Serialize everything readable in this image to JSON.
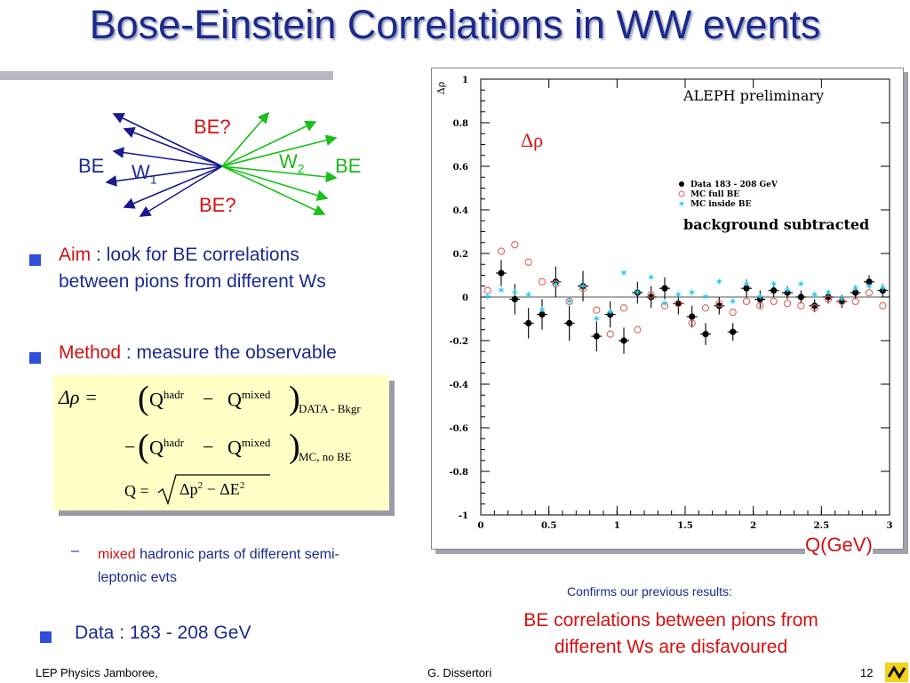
{
  "slide": {
    "title": "Bose-Einstein Correlations in WW events",
    "diagram": {
      "be_left": "BE",
      "be_right": "BE",
      "be_top": "BE?",
      "be_bottom": "BE?",
      "w1": "W",
      "w1_sub": "1",
      "w2": "W",
      "w2_sub": "2"
    },
    "bullets": {
      "aim_key": "Aim",
      "aim_text": " : look for BE correlations",
      "aim_text2": "between pions from different Ws",
      "method_key": "Method",
      "method_text": " : measure the observable",
      "sub_key": "mixed",
      "sub_text": " hadronic parts of different semi-",
      "sub_text2": "leptonic evts",
      "data_text": "Data : 183 - 208 GeV"
    },
    "formula": {
      "lhs": "Δρ =",
      "q": "Q",
      "hadr": "hadr",
      "mixed": "mixed",
      "minus": "−",
      "sub1": "DATA - Bkgr",
      "sub2": "MC, no BE",
      "qdef_lhs": "Q =",
      "qdef_rhs_p": "Δp",
      "qdef_rhs_e": "ΔE",
      "exp2": "2"
    },
    "plot_labels": {
      "qgev": "Q(GeV)",
      "confirms": "Confirms our previous results:",
      "concl1": "correlations between pions from",
      "concl_be": "BE",
      "concl2": "different Ws are disfavoured"
    },
    "footer": {
      "left": "LEP Physics Jamboree,",
      "center": "G. Dissertori",
      "page": "12"
    },
    "colors": {
      "title": "#1c2a8c",
      "red": "#d21212",
      "blue_text": "#1c2a8c",
      "green": "#1fb61f",
      "formula_bg": "#ffffc6"
    }
  },
  "chart_data": {
    "type": "scatter",
    "title": "ALEPH preliminary",
    "subtitle": "background subtracted",
    "annotation": "Δρ",
    "ylabel": "Δρ",
    "xlabel": "",
    "xlim": [
      0,
      3
    ],
    "ylim": [
      -1,
      1
    ],
    "xticks": [
      "0",
      "0.5",
      "1",
      "1.5",
      "2",
      "2.5",
      "3"
    ],
    "yticks": [
      "1",
      "0.8",
      "0.6",
      "0.4",
      "0.2",
      "0",
      "-0.2",
      "-0.4",
      "-0.6",
      "-0.8",
      "-1"
    ],
    "legend_position": "right",
    "reference_line_y": 0,
    "series": [
      {
        "name": "Data 183 - 208 GeV",
        "marker": "filled-circle",
        "color": "#000000",
        "x": [
          0.15,
          0.25,
          0.35,
          0.45,
          0.55,
          0.65,
          0.75,
          0.85,
          0.95,
          1.05,
          1.15,
          1.25,
          1.35,
          1.45,
          1.55,
          1.65,
          1.75,
          1.85,
          1.95,
          2.05,
          2.15,
          2.25,
          2.35,
          2.45,
          2.55,
          2.65,
          2.75,
          2.85,
          2.95
        ],
        "y": [
          0.11,
          -0.01,
          -0.12,
          -0.08,
          0.07,
          -0.12,
          0.05,
          -0.18,
          -0.08,
          -0.2,
          0.02,
          0.0,
          0.04,
          -0.03,
          -0.09,
          -0.17,
          -0.04,
          -0.16,
          0.04,
          -0.01,
          0.03,
          0.02,
          0.0,
          -0.04,
          0.0,
          -0.02,
          0.02,
          0.07,
          0.03
        ],
        "err": [
          0.06,
          0.07,
          0.07,
          0.07,
          0.07,
          0.08,
          0.07,
          0.07,
          0.06,
          0.06,
          0.05,
          0.05,
          0.05,
          0.05,
          0.05,
          0.05,
          0.04,
          0.04,
          0.04,
          0.04,
          0.03,
          0.03,
          0.03,
          0.03,
          0.03,
          0.03,
          0.03,
          0.03,
          0.03
        ]
      },
      {
        "name": "MC full BE",
        "marker": "open-circle",
        "color": "#e06060",
        "x": [
          0.05,
          0.15,
          0.25,
          0.35,
          0.45,
          0.55,
          0.65,
          0.75,
          0.85,
          0.95,
          1.05,
          1.15,
          1.25,
          1.35,
          1.45,
          1.55,
          1.65,
          1.75,
          1.85,
          1.95,
          2.05,
          2.15,
          2.25,
          2.35,
          2.45,
          2.55,
          2.65,
          2.75,
          2.85,
          2.95
        ],
        "y": [
          0.03,
          0.21,
          0.24,
          0.16,
          0.07,
          0.06,
          -0.02,
          0.04,
          -0.06,
          -0.17,
          -0.05,
          -0.15,
          0.01,
          -0.04,
          -0.03,
          -0.12,
          -0.05,
          -0.03,
          -0.07,
          -0.02,
          -0.04,
          -0.02,
          -0.03,
          -0.04,
          -0.05,
          -0.01,
          -0.02,
          -0.02,
          0.02,
          -0.04
        ]
      },
      {
        "name": "MC inside BE",
        "marker": "star",
        "color": "#22c8e8",
        "x": [
          0.05,
          0.15,
          0.25,
          0.35,
          0.45,
          0.55,
          0.65,
          0.75,
          0.85,
          0.95,
          1.05,
          1.15,
          1.25,
          1.35,
          1.45,
          1.55,
          1.65,
          1.75,
          1.85,
          1.95,
          2.05,
          2.15,
          2.25,
          2.35,
          2.45,
          2.55,
          2.65,
          2.75,
          2.85,
          2.95
        ],
        "y": [
          0.0,
          0.03,
          0.02,
          0.01,
          -0.06,
          0.06,
          -0.02,
          0.05,
          -0.1,
          -0.07,
          0.11,
          0.02,
          0.09,
          -0.03,
          0.01,
          0.02,
          0.0,
          0.07,
          -0.02,
          0.06,
          0.0,
          0.06,
          0.03,
          0.06,
          0.01,
          0.02,
          -0.01,
          0.04,
          0.05,
          0.04
        ]
      }
    ]
  }
}
